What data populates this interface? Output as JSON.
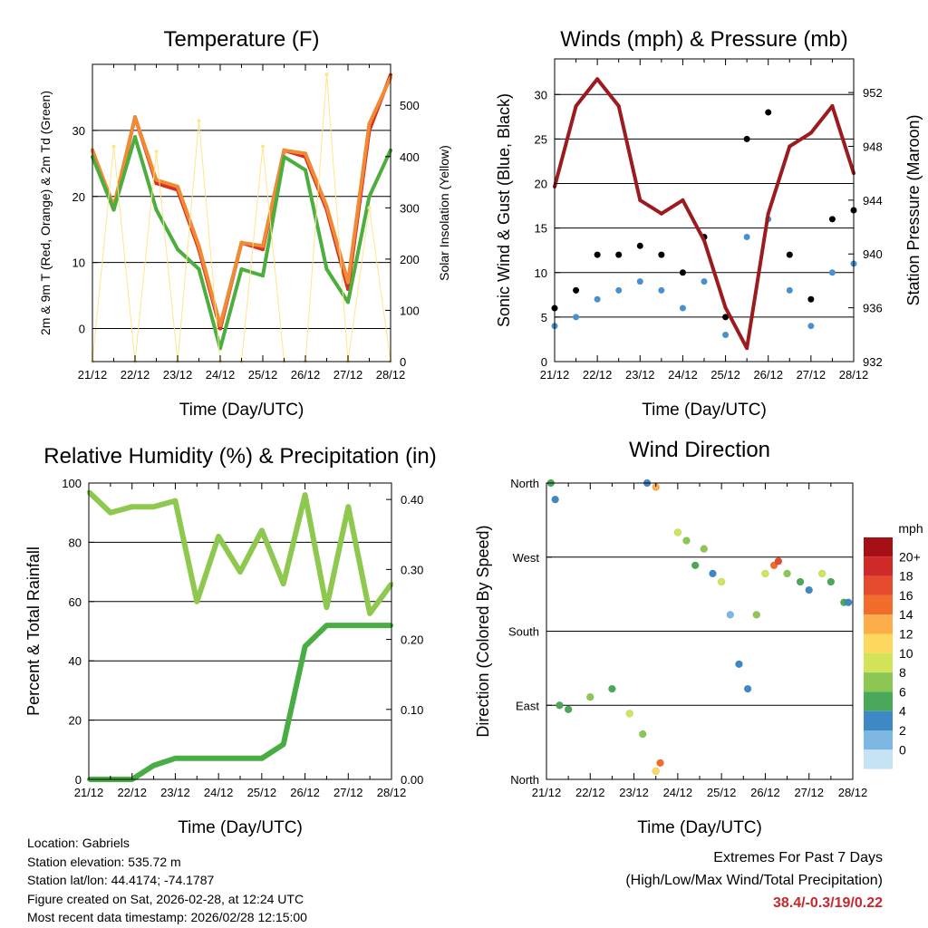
{
  "chart_data": [
    {
      "id": "temp",
      "type": "line",
      "title": "Temperature (F)",
      "xlabel": "Time (Day/UTC)",
      "ylabel": "2m & 9m T (Red, Orange) & 2m Td (Green)",
      "y2label": "Solar Insolation (Yellow)",
      "x": [
        0,
        0.5,
        1,
        1.5,
        2,
        2.5,
        3,
        3.5,
        4,
        4.5,
        5,
        5.5,
        6,
        6.5,
        7
      ],
      "categories": [
        "21/12",
        "22/12",
        "23/12",
        "24/12",
        "25/12",
        "26/12",
        "27/12",
        "28/12"
      ],
      "ylim": [
        -5,
        40
      ],
      "yticks": [
        0,
        10,
        20,
        30
      ],
      "y2lim": [
        0,
        580
      ],
      "y2ticks": [
        0,
        100,
        200,
        300,
        400,
        500
      ],
      "series": [
        {
          "name": "2m T",
          "color": "#d7301f",
          "axis": "left",
          "values": [
            27,
            18,
            32,
            22,
            21,
            12,
            0,
            13,
            12,
            27,
            26,
            18,
            6,
            30,
            38.4
          ]
        },
        {
          "name": "9m T",
          "color": "#f08a34",
          "axis": "left",
          "values": [
            27,
            18.5,
            32,
            22.5,
            21.5,
            12.5,
            0.5,
            13,
            12.5,
            27,
            26.5,
            18.5,
            7,
            31,
            38
          ]
        },
        {
          "name": "2m Td",
          "color": "#4cae3e",
          "axis": "left",
          "values": [
            26,
            18,
            29,
            18,
            12,
            9,
            -3,
            9,
            8,
            26,
            24,
            9,
            4,
            20,
            27
          ]
        },
        {
          "name": "Solar Insolation",
          "color": "#fde68a",
          "axis": "right",
          "values": [
            0,
            420,
            0,
            410,
            0,
            470,
            0,
            0,
            420,
            0,
            0,
            560,
            0,
            300,
            0
          ]
        }
      ]
    },
    {
      "id": "wind",
      "type": "scatter",
      "title": "Winds (mph) & Pressure (mb)",
      "xlabel": "Time (Day/UTC)",
      "ylabel": "Sonic Wind & Gust (Blue, Black)",
      "y2label": "Station Pressure (Maroon)",
      "categories": [
        "21/12",
        "22/12",
        "23/12",
        "24/12",
        "25/12",
        "26/12",
        "27/12",
        "28/12"
      ],
      "x": [
        0,
        0.5,
        1,
        1.5,
        2,
        2.5,
        3,
        3.5,
        4,
        4.5,
        5,
        5.5,
        6,
        6.5,
        7
      ],
      "ylim": [
        0,
        34
      ],
      "yticks": [
        0,
        5,
        10,
        15,
        20,
        25,
        30
      ],
      "y2lim": [
        932,
        954.5
      ],
      "y2ticks": [
        932,
        936,
        940,
        944,
        948,
        952
      ],
      "series": [
        {
          "name": "Gust",
          "color": "#000000",
          "axis": "left",
          "values": [
            6,
            8,
            12,
            12,
            13,
            12,
            10,
            14,
            5,
            25,
            28,
            12,
            7,
            16,
            17
          ]
        },
        {
          "name": "Sonic Wind",
          "color": "#4a90cc",
          "axis": "left",
          "values": [
            4,
            5,
            7,
            8,
            9,
            8,
            6,
            9,
            3,
            14,
            16,
            8,
            4,
            10,
            11
          ]
        },
        {
          "name": "Station Pressure",
          "color": "#9b1b1e",
          "axis": "right",
          "values": [
            945,
            951,
            953,
            951,
            944,
            943,
            944,
            941,
            936,
            933,
            943,
            948,
            949,
            951,
            946
          ]
        }
      ]
    },
    {
      "id": "rh",
      "type": "line",
      "title": "Relative Humidity (%) & Precipitation (in)",
      "xlabel": "Time (Day/UTC)",
      "ylabel": "Percent & Total Rainfall",
      "categories": [
        "21/12",
        "22/12",
        "23/12",
        "24/12",
        "25/12",
        "26/12",
        "27/12",
        "28/12"
      ],
      "x": [
        0,
        0.5,
        1,
        1.5,
        2,
        2.5,
        3,
        3.5,
        4,
        4.5,
        5,
        5.5,
        6,
        6.5,
        7
      ],
      "ylim": [
        0,
        100
      ],
      "yticks": [
        0,
        20,
        40,
        60,
        80,
        100
      ],
      "y2lim": [
        0,
        0.4235
      ],
      "y2ticks": [
        0.0,
        0.1,
        0.2,
        0.3,
        0.4
      ],
      "series": [
        {
          "name": "Relative Humidity",
          "color": "#8fc84f",
          "axis": "left",
          "values": [
            97,
            90,
            92,
            92,
            94,
            60,
            82,
            70,
            84,
            66,
            96,
            58,
            92,
            56,
            66
          ]
        },
        {
          "name": "Total Precipitation",
          "color": "#48ae44",
          "axis": "right",
          "values": [
            0.0,
            0.0,
            0.0,
            0.02,
            0.03,
            0.03,
            0.03,
            0.03,
            0.03,
            0.05,
            0.19,
            0.22,
            0.22,
            0.22,
            0.22
          ]
        }
      ]
    },
    {
      "id": "wdir",
      "type": "scatter",
      "title": "Wind Direction",
      "xlabel": "Time (Day/UTC)",
      "ylabel": "Direction (Colored By Speed)",
      "categories": [
        "21/12",
        "22/12",
        "23/12",
        "24/12",
        "25/12",
        "26/12",
        "27/12",
        "28/12"
      ],
      "ylim": [
        0,
        360
      ],
      "ytick_values": [
        0,
        90,
        180,
        270,
        360
      ],
      "ytick_labels": [
        "North",
        "East",
        "South",
        "West",
        "North"
      ],
      "points": [
        {
          "day": 0.1,
          "dir": 360,
          "speed": 5
        },
        {
          "day": 0.2,
          "dir": 340,
          "speed": 4
        },
        {
          "day": 0.3,
          "dir": 90,
          "speed": 6
        },
        {
          "day": 0.5,
          "dir": 85,
          "speed": 5
        },
        {
          "day": 1.0,
          "dir": 100,
          "speed": 7
        },
        {
          "day": 1.5,
          "dir": 110,
          "speed": 6
        },
        {
          "day": 1.9,
          "dir": 80,
          "speed": 10
        },
        {
          "day": 2.2,
          "dir": 55,
          "speed": 8
        },
        {
          "day": 2.3,
          "dir": 360,
          "speed": 3
        },
        {
          "day": 2.5,
          "dir": 355,
          "speed": 14
        },
        {
          "day": 2.6,
          "dir": 20,
          "speed": 16
        },
        {
          "day": 2.5,
          "dir": 10,
          "speed": 12
        },
        {
          "day": 3.0,
          "dir": 300,
          "speed": 9
        },
        {
          "day": 3.2,
          "dir": 290,
          "speed": 7
        },
        {
          "day": 3.4,
          "dir": 260,
          "speed": 5
        },
        {
          "day": 3.6,
          "dir": 280,
          "speed": 8
        },
        {
          "day": 3.8,
          "dir": 250,
          "speed": 4
        },
        {
          "day": 4.0,
          "dir": 240,
          "speed": 9
        },
        {
          "day": 4.2,
          "dir": 200,
          "speed": 2
        },
        {
          "day": 4.4,
          "dir": 140,
          "speed": 3
        },
        {
          "day": 4.6,
          "dir": 110,
          "speed": 4
        },
        {
          "day": 4.8,
          "dir": 200,
          "speed": 7
        },
        {
          "day": 5.0,
          "dir": 250,
          "speed": 10
        },
        {
          "day": 5.2,
          "dir": 260,
          "speed": 15
        },
        {
          "day": 5.3,
          "dir": 265,
          "speed": 18
        },
        {
          "day": 5.5,
          "dir": 250,
          "speed": 8
        },
        {
          "day": 5.8,
          "dir": 240,
          "speed": 5
        },
        {
          "day": 6.0,
          "dir": 230,
          "speed": 4
        },
        {
          "day": 6.3,
          "dir": 250,
          "speed": 9
        },
        {
          "day": 6.5,
          "dir": 240,
          "speed": 6
        },
        {
          "day": 6.8,
          "dir": 215,
          "speed": 5
        },
        {
          "day": 6.9,
          "dir": 215,
          "speed": 4
        }
      ],
      "colorbar": {
        "title": "mph",
        "labels": [
          "20+",
          "18",
          "16",
          "14",
          "12",
          "10",
          "8",
          "6",
          "4",
          "2",
          "0"
        ],
        "colors": [
          "#a50f15",
          "#cf2a27",
          "#e64b2e",
          "#f26c2b",
          "#fdae4a",
          "#fdd75e",
          "#d3e35a",
          "#8cc653",
          "#4aa85a",
          "#3d88c5",
          "#7cb8e2",
          "#c6e3f6"
        ]
      }
    }
  ],
  "footer": {
    "location": "Location: Gabriels",
    "elevation": "Station elevation: 535.72 m",
    "latlon": "Station lat/lon: 44.4174; -74.1787",
    "created": "Figure created on Sat, 2026-02-28, at 12:24 UTC",
    "recent": "Most recent data timestamp: 2026/02/28 12:15:00",
    "extremes_title": "Extremes For Past 7 Days",
    "extremes_sub": "(High/Low/Max Wind/Total Precipitation)",
    "extremes_value": "38.4/-0.3/19/0.22"
  }
}
